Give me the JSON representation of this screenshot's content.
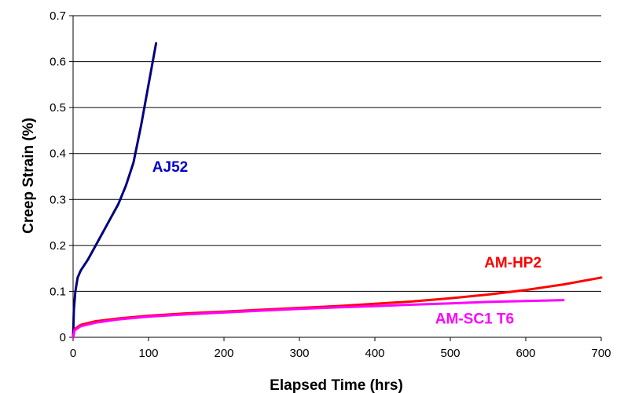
{
  "chart_data": {
    "type": "line",
    "title": "",
    "xlabel": "Elapsed Time (hrs)",
    "ylabel": "Creep Strain (%)",
    "xlim": [
      0,
      700
    ],
    "ylim": [
      0,
      0.7
    ],
    "x_ticks": [
      0,
      100,
      200,
      300,
      400,
      500,
      600,
      700
    ],
    "y_ticks": [
      0,
      0.1,
      0.2,
      0.3,
      0.4,
      0.5,
      0.6,
      0.7
    ],
    "x_tick_labels": [
      "0",
      "100",
      "200",
      "300",
      "400",
      "500",
      "600",
      "700"
    ],
    "y_tick_labels": [
      "0",
      "0.1",
      "0.2",
      "0.3",
      "0.4",
      "0.5",
      "0.6",
      "0.7"
    ],
    "grid": "horizontal",
    "series": [
      {
        "name": "AJ52",
        "color": "#000080",
        "label_color": "#0000cc",
        "label_at": [
          105,
          0.36
        ],
        "points": [
          [
            0,
            0
          ],
          [
            1,
            0.06
          ],
          [
            3,
            0.1
          ],
          [
            6,
            0.13
          ],
          [
            10,
            0.145
          ],
          [
            20,
            0.17
          ],
          [
            30,
            0.2
          ],
          [
            40,
            0.23
          ],
          [
            50,
            0.26
          ],
          [
            60,
            0.29
          ],
          [
            70,
            0.33
          ],
          [
            80,
            0.38
          ],
          [
            90,
            0.46
          ],
          [
            100,
            0.55
          ],
          [
            110,
            0.64
          ]
        ]
      },
      {
        "name": "AM-HP2",
        "color": "#ff0000",
        "label_color": "#ff0000",
        "label_at": [
          545,
          0.152
        ],
        "points": [
          [
            0,
            0
          ],
          [
            2,
            0.018
          ],
          [
            10,
            0.027
          ],
          [
            30,
            0.035
          ],
          [
            60,
            0.041
          ],
          [
            100,
            0.047
          ],
          [
            150,
            0.052
          ],
          [
            200,
            0.056
          ],
          [
            250,
            0.06
          ],
          [
            300,
            0.064
          ],
          [
            350,
            0.068
          ],
          [
            400,
            0.073
          ],
          [
            450,
            0.078
          ],
          [
            500,
            0.085
          ],
          [
            550,
            0.093
          ],
          [
            600,
            0.103
          ],
          [
            650,
            0.115
          ],
          [
            700,
            0.13
          ]
        ]
      },
      {
        "name": "AM-SC1 T6",
        "color": "#ff00ff",
        "label_color": "#ff00ff",
        "label_at": [
          480,
          0.03
        ],
        "points": [
          [
            0,
            0
          ],
          [
            2,
            0.015
          ],
          [
            10,
            0.024
          ],
          [
            30,
            0.032
          ],
          [
            60,
            0.039
          ],
          [
            100,
            0.045
          ],
          [
            150,
            0.05
          ],
          [
            200,
            0.054
          ],
          [
            250,
            0.058
          ],
          [
            300,
            0.062
          ],
          [
            350,
            0.065
          ],
          [
            400,
            0.068
          ],
          [
            450,
            0.071
          ],
          [
            500,
            0.074
          ],
          [
            550,
            0.077
          ],
          [
            600,
            0.079
          ],
          [
            650,
            0.081
          ]
        ]
      }
    ]
  }
}
